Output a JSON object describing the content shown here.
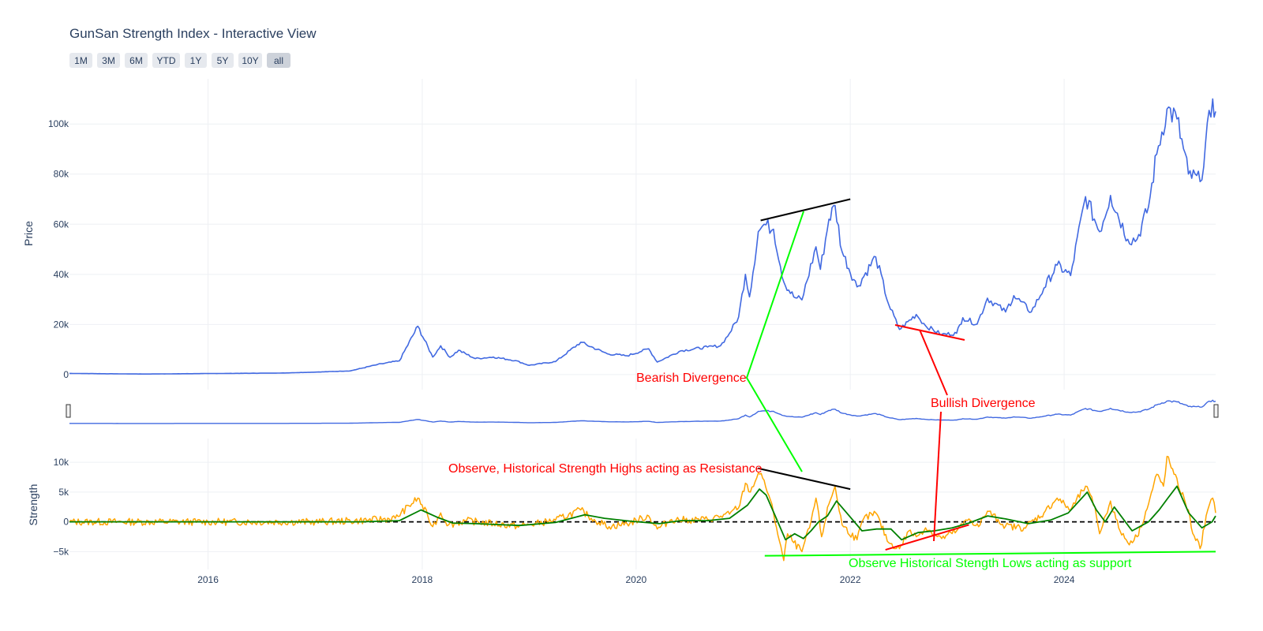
{
  "title": "GunSan Strength Index - Interactive View",
  "range_buttons": [
    {
      "label": "1M",
      "active": false
    },
    {
      "label": "3M",
      "active": false
    },
    {
      "label": "6M",
      "active": false
    },
    {
      "label": "YTD",
      "active": false
    },
    {
      "label": "1Y",
      "active": false
    },
    {
      "label": "5Y",
      "active": false
    },
    {
      "label": "10Y",
      "active": false
    },
    {
      "label": "all",
      "active": true
    }
  ],
  "colors": {
    "price": "#4169e1",
    "strength": "#ffa500",
    "strength_ma": "#008000",
    "zero_line": "#000000",
    "annotation_red": "#ff0000",
    "annotation_green": "#00ff00",
    "trendline": "#000000",
    "grid": "#eef0f4"
  },
  "chart_data": {
    "type": "line",
    "x_range": [
      "2014-09-15",
      "2025-06-01"
    ],
    "x_ticks": [
      "2016",
      "2018",
      "2020",
      "2022",
      "2024"
    ],
    "grid": true,
    "price_panel": {
      "ylabel": "Price",
      "ylim": [
        -6000,
        118000
      ],
      "y_ticks": [
        0,
        20000,
        40000,
        60000,
        80000,
        100000
      ],
      "y_tick_labels": [
        "0",
        "20k",
        "40k",
        "60k",
        "80k",
        "100k"
      ],
      "series": [
        {
          "x": [
            "2014-09-15",
            "2015-06-01",
            "2016-01-01",
            "2016-09-01",
            "2017-01-01",
            "2017-05-01",
            "2017-08-01",
            "2017-10-15",
            "2017-12-17",
            "2018-02-06",
            "2018-03-05",
            "2018-04-06",
            "2018-05-05",
            "2018-07-01",
            "2018-09-01",
            "2018-11-15",
            "2019-01-01",
            "2019-04-01",
            "2019-06-26",
            "2019-09-25",
            "2019-12-01",
            "2020-02-13",
            "2020-03-13",
            "2020-06-01",
            "2020-09-01",
            "2020-10-15",
            "2020-11-15",
            "2020-12-16",
            "2021-01-08",
            "2021-01-22",
            "2021-02-21",
            "2021-03-13",
            "2021-04-14",
            "2021-05-19",
            "2021-06-22",
            "2021-07-20",
            "2021-09-06",
            "2021-09-21",
            "2021-10-20",
            "2021-11-10",
            "2021-12-04",
            "2022-01-24",
            "2022-03-29",
            "2022-05-12",
            "2022-06-18",
            "2022-08-14",
            "2022-09-15",
            "2022-11-09",
            "2022-12-30",
            "2023-01-20",
            "2023-03-10",
            "2023-04-14",
            "2023-06-15",
            "2023-07-13",
            "2023-09-11",
            "2023-10-24",
            "2023-12-08",
            "2024-01-23",
            "2024-03-14",
            "2024-05-01",
            "2024-06-07",
            "2024-08-05",
            "2024-09-06",
            "2024-10-15",
            "2024-11-12",
            "2024-12-17",
            "2025-01-20",
            "2025-02-28",
            "2025-04-09",
            "2025-05-22",
            "2025-06-01"
          ],
          "y": [
            475,
            225,
            430,
            610,
            1000,
            1500,
            4000,
            5500,
            19300,
            7000,
            11500,
            6900,
            9700,
            6400,
            7000,
            5600,
            3700,
            5200,
            12900,
            8300,
            7500,
            10300,
            5000,
            9500,
            11000,
            11500,
            16500,
            23000,
            40000,
            31000,
            57000,
            60000,
            58000,
            37000,
            31000,
            29800,
            51000,
            42000,
            62000,
            67500,
            49000,
            35000,
            47000,
            28000,
            18000,
            24000,
            19500,
            16000,
            16500,
            22700,
            20200,
            30500,
            25000,
            31500,
            25000,
            34500,
            43700,
            39500,
            71000,
            57000,
            71500,
            54000,
            54000,
            67000,
            88000,
            106000,
            102000,
            80000,
            77000,
            110000,
            105000
          ]
        }
      ],
      "trendline": {
        "x": [
          "2021-03-01",
          "2022-01-01"
        ],
        "y": [
          61500,
          70000
        ]
      }
    },
    "range_slider": {
      "series_ref": "price_panel"
    },
    "strength_panel": {
      "ylabel": "Strength",
      "ylim": [
        -8000,
        14000
      ],
      "y_ticks": [
        -5000,
        0,
        5000,
        10000
      ],
      "y_tick_labels": [
        "−5k",
        "0",
        "5k",
        "10k"
      ],
      "zero_line": 0,
      "series": [
        {
          "x": [
            "2014-09-15",
            "2016-01-01",
            "2017-01-01",
            "2017-06-01",
            "2017-10-01",
            "2017-12-17",
            "2018-01-20",
            "2018-02-06",
            "2018-03-05",
            "2018-04-01",
            "2018-06-01",
            "2018-09-01",
            "2018-11-20",
            "2019-01-01",
            "2019-04-01",
            "2019-06-26",
            "2019-08-01",
            "2019-10-01",
            "2019-12-01",
            "2020-02-13",
            "2020-03-13",
            "2020-05-01",
            "2020-07-01",
            "2020-09-01",
            "2020-11-15",
            "2020-12-20",
            "2021-01-08",
            "2021-01-25",
            "2021-02-21",
            "2021-03-13",
            "2021-04-14",
            "2021-05-19",
            "2021-06-01",
            "2021-06-22",
            "2021-07-20",
            "2021-08-15",
            "2021-09-06",
            "2021-09-25",
            "2021-10-20",
            "2021-11-10",
            "2021-12-04",
            "2022-01-24",
            "2022-02-15",
            "2022-03-29",
            "2022-05-12",
            "2022-06-18",
            "2022-07-20",
            "2022-08-14",
            "2022-09-15",
            "2022-11-09",
            "2022-12-30",
            "2023-02-10",
            "2023-03-15",
            "2023-04-14",
            "2023-06-15",
            "2023-08-17",
            "2023-10-24",
            "2023-12-08",
            "2024-01-23",
            "2024-03-14",
            "2024-04-15",
            "2024-05-01",
            "2024-06-07",
            "2024-07-05",
            "2024-08-05",
            "2024-09-06",
            "2024-10-15",
            "2024-11-12",
            "2024-12-05",
            "2024-12-17",
            "2025-01-10",
            "2025-02-28",
            "2025-03-10",
            "2025-04-09",
            "2025-05-05",
            "2025-05-22",
            "2025-06-01"
          ],
          "y": [
            0,
            0,
            0,
            200,
            600,
            4000,
            1000,
            -800,
            1500,
            -500,
            200,
            -300,
            -700,
            -500,
            300,
            2000,
            600,
            -800,
            -300,
            1000,
            -1200,
            400,
            300,
            400,
            1300,
            2800,
            6500,
            5000,
            8200,
            7000,
            1500,
            -6500,
            -2000,
            -3500,
            -5000,
            -1000,
            4000,
            -2500,
            3000,
            6000,
            -500,
            -3000,
            500,
            1500,
            -3500,
            -4500,
            -1500,
            -2500,
            -1000,
            -2800,
            -1500,
            500,
            -800,
            1800,
            -700,
            -1000,
            1500,
            4000,
            2000,
            6000,
            2500,
            -2000,
            3500,
            -1000,
            -3500,
            -2500,
            3000,
            8000,
            6000,
            11000,
            8000,
            2000,
            -1000,
            -4500,
            2000,
            4000,
            1500
          ]
        },
        {
          "x": [
            "2014-09-15",
            "2016-01-01",
            "2017-06-01",
            "2017-10-15",
            "2017-12-28",
            "2018-02-20",
            "2018-04-15",
            "2018-07-01",
            "2018-12-01",
            "2019-04-01",
            "2019-07-10",
            "2019-09-15",
            "2019-12-15",
            "2020-03-20",
            "2020-06-01",
            "2020-09-01",
            "2020-11-15",
            "2021-01-15",
            "2021-02-25",
            "2021-03-20",
            "2021-04-20",
            "2021-05-25",
            "2021-06-25",
            "2021-07-25",
            "2021-08-20",
            "2021-09-15",
            "2021-10-15",
            "2021-11-15",
            "2021-12-25",
            "2022-02-10",
            "2022-04-01",
            "2022-05-20",
            "2022-06-25",
            "2022-08-20",
            "2022-10-15",
            "2022-12-15",
            "2023-02-10",
            "2023-04-15",
            "2023-06-15",
            "2023-09-01",
            "2023-11-15",
            "2024-01-15",
            "2024-03-20",
            "2024-04-20",
            "2024-05-20",
            "2024-06-20",
            "2024-08-20",
            "2024-10-15",
            "2024-11-20",
            "2024-12-20",
            "2025-01-20",
            "2025-03-01",
            "2025-04-15",
            "2025-05-20",
            "2025-06-01"
          ],
          "y": [
            0,
            0,
            0,
            200,
            2000,
            800,
            -200,
            -300,
            -600,
            -100,
            1200,
            600,
            100,
            -300,
            200,
            200,
            600,
            2800,
            5500,
            4500,
            1000,
            -3000,
            -2000,
            -2800,
            -1500,
            0,
            1000,
            3500,
            1200,
            -1500,
            -1200,
            -1200,
            -3000,
            -1800,
            -1500,
            -1000,
            -200,
            1000,
            500,
            -300,
            300,
            1500,
            5000,
            2000,
            0,
            2500,
            -1500,
            0,
            2000,
            4000,
            6000,
            1500,
            -1000,
            0,
            1000
          ]
        }
      ],
      "trendline": {
        "x": [
          "2021-02-20",
          "2022-01-01"
        ],
        "y": [
          9000,
          5500
        ]
      },
      "support_line": {
        "x": [
          "2021-03-15",
          "2025-06-01"
        ],
        "y": [
          -5700,
          -5000
        ]
      },
      "bullish_line": {
        "x": [
          "2022-05-01",
          "2023-02-10"
        ],
        "y": [
          -4700,
          -500
        ]
      }
    },
    "annotations": [
      {
        "text": "Bearish Divergence",
        "color": "red"
      },
      {
        "text": "Bullish Divergence",
        "color": "red"
      },
      {
        "text": "Observe, Historical Strength Highs acting as Resistance",
        "color": "red"
      },
      {
        "text": "Observe Historical Stength Lows acting as support",
        "color": "green"
      }
    ]
  }
}
